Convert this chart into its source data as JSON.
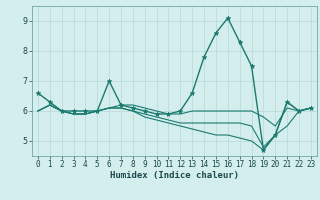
{
  "xlabel": "Humidex (Indice chaleur)",
  "background_color": "#d4eeee",
  "grid_color": "#b8d8d8",
  "line_color": "#1a7a6e",
  "xlim": [
    -0.5,
    23.5
  ],
  "ylim": [
    4.5,
    9.5
  ],
  "yticks": [
    5,
    6,
    7,
    8,
    9
  ],
  "xticks": [
    0,
    1,
    2,
    3,
    4,
    5,
    6,
    7,
    8,
    9,
    10,
    11,
    12,
    13,
    14,
    15,
    16,
    17,
    18,
    19,
    20,
    21,
    22,
    23
  ],
  "lines": [
    {
      "x": [
        0,
        1,
        2,
        3,
        4,
        5,
        6,
        7,
        8,
        9,
        10,
        11,
        12,
        13,
        14,
        15,
        16,
        17,
        18,
        19,
        20,
        21,
        22,
        23
      ],
      "y": [
        6.6,
        6.3,
        6.0,
        6.0,
        6.0,
        6.0,
        7.0,
        6.2,
        6.1,
        6.0,
        5.9,
        5.9,
        6.0,
        6.6,
        7.8,
        8.6,
        9.1,
        8.3,
        7.5,
        4.7,
        5.2,
        6.3,
        6.0,
        6.1
      ],
      "has_markers": true
    },
    {
      "x": [
        0,
        1,
        2,
        3,
        4,
        5,
        6,
        7,
        8,
        9,
        10,
        11,
        12,
        13,
        14,
        15,
        16,
        17,
        18,
        19,
        20,
        21,
        22,
        23
      ],
      "y": [
        6.0,
        6.2,
        6.0,
        5.9,
        5.9,
        6.0,
        6.1,
        6.2,
        6.2,
        6.1,
        6.0,
        5.9,
        5.9,
        6.0,
        6.0,
        6.0,
        6.0,
        6.0,
        6.0,
        5.8,
        5.5,
        6.1,
        6.0,
        6.1
      ],
      "has_markers": false
    },
    {
      "x": [
        0,
        1,
        2,
        3,
        4,
        5,
        6,
        7,
        8,
        9,
        10,
        11,
        12,
        13,
        14,
        15,
        16,
        17,
        18,
        19,
        20,
        21,
        22,
        23
      ],
      "y": [
        6.0,
        6.2,
        6.0,
        5.9,
        5.9,
        6.0,
        6.1,
        6.1,
        6.0,
        5.9,
        5.8,
        5.7,
        5.6,
        5.6,
        5.6,
        5.6,
        5.6,
        5.6,
        5.5,
        4.8,
        5.2,
        6.3,
        6.0,
        6.1
      ],
      "has_markers": false
    },
    {
      "x": [
        0,
        1,
        2,
        3,
        4,
        5,
        6,
        7,
        8,
        9,
        10,
        11,
        12,
        13,
        14,
        15,
        16,
        17,
        18,
        19,
        20,
        21,
        22,
        23
      ],
      "y": [
        6.0,
        6.2,
        6.0,
        5.9,
        5.9,
        6.0,
        6.1,
        6.1,
        6.0,
        5.8,
        5.7,
        5.6,
        5.5,
        5.4,
        5.3,
        5.2,
        5.2,
        5.1,
        5.0,
        4.7,
        5.2,
        5.5,
        6.0,
        6.1
      ],
      "has_markers": false
    }
  ]
}
